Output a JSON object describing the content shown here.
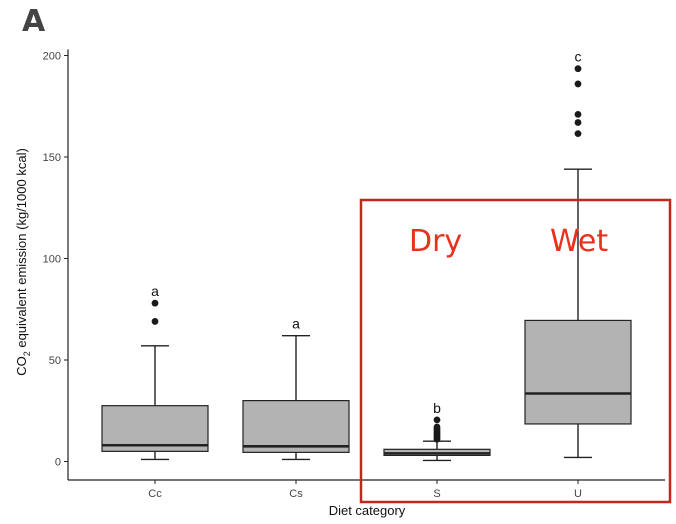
{
  "panel_label": "A",
  "chart_data": {
    "type": "box",
    "title": "",
    "xlabel": "Diet category",
    "ylabel": "CO2 equivalent emission (kg/1000 kcal)",
    "ylabel_main": "CO",
    "ylabel_sub": "2",
    "ylabel_rest": " equivalent emission  (kg/1000 kcal)",
    "ylim": [
      -10,
      203
    ],
    "yticks": [
      0,
      50,
      100,
      150,
      200
    ],
    "grid": false,
    "categories": [
      "Cc",
      "Cs",
      "S",
      "U"
    ],
    "boxes": [
      {
        "category": "Cc",
        "whisker_low": 1,
        "q1": 5,
        "median": 8,
        "q3": 27.5,
        "whisker_high": 57,
        "outliers": [
          69,
          78
        ],
        "letter": "a"
      },
      {
        "category": "Cs",
        "whisker_low": 1,
        "q1": 4.5,
        "median": 7.5,
        "q3": 30,
        "whisker_high": 62,
        "outliers": [],
        "letter": "a"
      },
      {
        "category": "S",
        "whisker_low": 0.5,
        "q1": 3,
        "median": 4,
        "q3": 6,
        "whisker_high": 10,
        "outliers": [
          11,
          12,
          13,
          14,
          15,
          16,
          17,
          20.5
        ],
        "letter": "b"
      },
      {
        "category": "U",
        "whisker_low": 2,
        "q1": 18.5,
        "median": 33.5,
        "q3": 69.5,
        "whisker_high": 144,
        "outliers": [
          161.5,
          167,
          171,
          186,
          193.5
        ],
        "letter": "c"
      }
    ],
    "highlight": {
      "color": "#c0281c",
      "labels": [
        "Dry",
        "Wet"
      ]
    }
  }
}
